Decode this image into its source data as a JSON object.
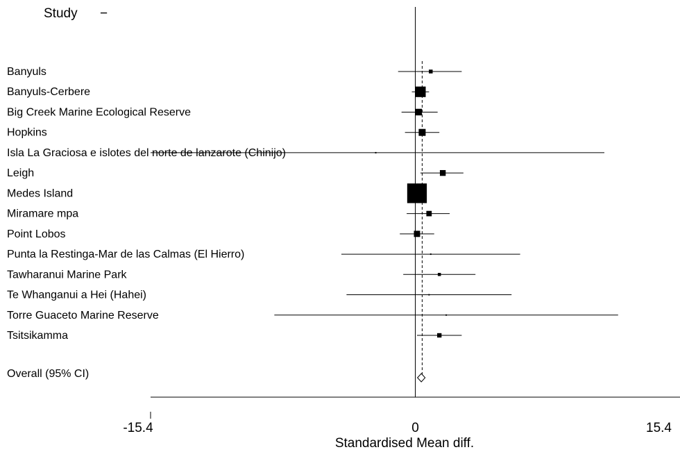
{
  "chart_data": {
    "type": "forest",
    "column_header": "Study",
    "header_marker": "−",
    "xlabel": "Standardised Mean diff.",
    "xlim": [
      -15.4,
      15.4
    ],
    "xticks": [
      {
        "value": -15.4,
        "label": "-15.4"
      },
      {
        "value": 0,
        "label": "0"
      },
      {
        "value": 15.4,
        "label": "15.4"
      }
    ],
    "null_line": 0,
    "pooled_line": 0.4,
    "studies": [
      {
        "name": "Banyuls",
        "estimate": 0.9,
        "ci": [
          -1.0,
          2.7
        ],
        "weight": 0.3
      },
      {
        "name": "Banyuls-Cerbere",
        "estimate": 0.3,
        "ci": [
          -0.2,
          0.8
        ],
        "weight": 2.3
      },
      {
        "name": "Big Creek Marine Ecological Reserve",
        "estimate": 0.2,
        "ci": [
          -0.8,
          1.3
        ],
        "weight": 0.9
      },
      {
        "name": "Hopkins",
        "estimate": 0.4,
        "ci": [
          -0.6,
          1.4
        ],
        "weight": 1.0
      },
      {
        "name": "Isla La Graciosa e islotes del norte de lanzarote (Chinijo)",
        "estimate": -2.3,
        "ci": [
          -15.4,
          11.0
        ],
        "weight": 0.01
      },
      {
        "name": "Leigh",
        "estimate": 1.6,
        "ci": [
          0.3,
          2.8
        ],
        "weight": 0.7
      },
      {
        "name": "Medes Island",
        "estimate": 0.1,
        "ci": [
          0.1,
          0.1
        ],
        "weight": 8.0
      },
      {
        "name": "Miramare mpa",
        "estimate": 0.8,
        "ci": [
          -0.5,
          2.0
        ],
        "weight": 0.6
      },
      {
        "name": "Point Lobos",
        "estimate": 0.1,
        "ci": [
          -0.9,
          1.1
        ],
        "weight": 0.8
      },
      {
        "name": "Punta la Restinga-Mar de las Calmas (El Hierro)",
        "estimate": 0.9,
        "ci": [
          -4.3,
          6.1
        ],
        "weight": 0.02
      },
      {
        "name": "Tawharanui Marine Park",
        "estimate": 1.4,
        "ci": [
          -0.7,
          3.5
        ],
        "weight": 0.2
      },
      {
        "name": "Te Whanganui a Hei (Hahei)",
        "estimate": 0.8,
        "ci": [
          -4.0,
          5.6
        ],
        "weight": 0.02
      },
      {
        "name": "Torre Guaceto Marine Reserve",
        "estimate": 1.8,
        "ci": [
          -8.2,
          11.8
        ],
        "weight": 0.01
      },
      {
        "name": "Tsitsikamma",
        "estimate": 1.4,
        "ci": [
          0.1,
          2.7
        ],
        "weight": 0.4
      }
    ],
    "overall": {
      "name": "Overall (95% CI)",
      "estimate": 0.35,
      "ci": [
        0.2,
        0.5
      ]
    },
    "colors": {
      "marks": "#000000",
      "background": "#ffffff"
    }
  }
}
